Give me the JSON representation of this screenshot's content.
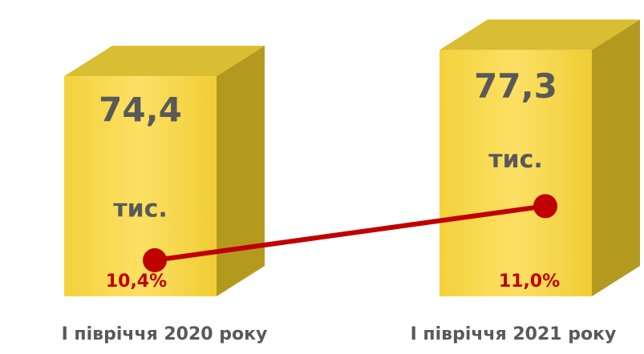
{
  "chart_data": {
    "type": "bar",
    "categories": [
      "І півріччя 2020 року",
      "І півріччя 2021 року"
    ],
    "values": [
      74.4,
      77.3
    ],
    "value_labels": [
      "74,4",
      "77,3"
    ],
    "unit_label": "тис.",
    "color": "#f7d84a",
    "ylim": [
      50,
      80
    ],
    "line": {
      "values": [
        10.4,
        11.0
      ],
      "value_labels": [
        "10,4%",
        "11,0%"
      ],
      "color": "#c00000",
      "axis": "y2"
    },
    "y2lim": [
      10,
      13
    ]
  }
}
